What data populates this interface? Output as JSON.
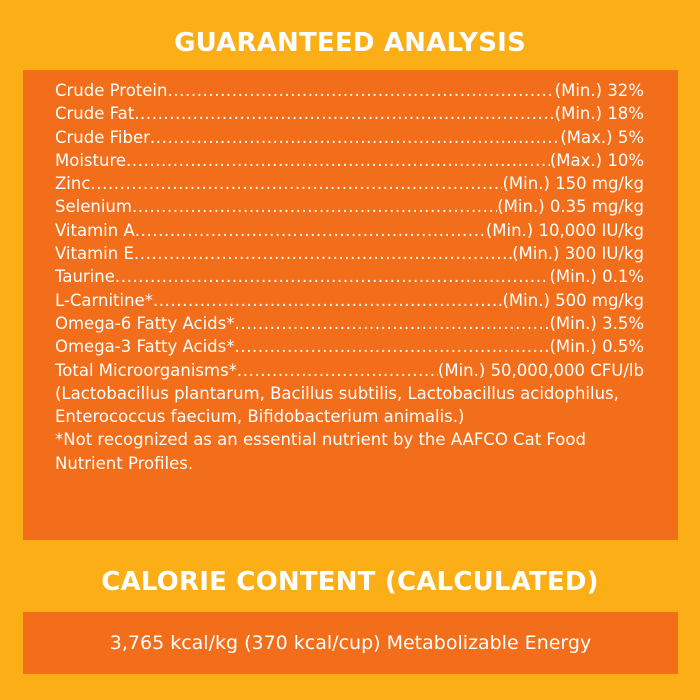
{
  "guaranteed_analysis": {
    "title": "GUARANTEED ANALYSIS",
    "rows": [
      {
        "name": "Crude Protein",
        "value": "(Min.) 32%"
      },
      {
        "name": "Crude Fat",
        "value": "(Min.) 18%"
      },
      {
        "name": "Crude Fiber",
        "value": "(Max.) 5%"
      },
      {
        "name": "Moisture",
        "value": "(Max.) 10%"
      },
      {
        "name": "Zinc",
        "value": "(Min.) 150 mg/kg"
      },
      {
        "name": "Selenium",
        "value": "(Min.) 0.35 mg/kg"
      },
      {
        "name": "Vitamin A",
        "value": "(Min.) 10,000 IU/kg"
      },
      {
        "name": "Vitamin E",
        "value": "(Min.) 300 IU/kg"
      },
      {
        "name": "Taurine",
        "value": "(Min.) 0.1%"
      },
      {
        "name": "L-Carnitine*",
        "value": "(Min.) 500 mg/kg"
      },
      {
        "name": "Omega-6 Fatty Acids*",
        "value": "(Min.)  3.5%"
      },
      {
        "name": "Omega-3 Fatty Acids*",
        "value": "(Min.) 0.5%"
      },
      {
        "name": "Total Microorganisms*",
        "value": "(Min.) 50,000,000 CFU/lb"
      }
    ],
    "microorganisms_note": "(Lactobacillus plantarum, Bacillus subtilis, Lactobacillus acidophilus, Enterococcus faecium, Bifidobacterium animalis.)",
    "aafco_note": "*Not recognized as an essential nutrient by the AAFCO Cat Food Nutrient Profiles."
  },
  "calorie_content": {
    "title": "CALORIE CONTENT (CALCULATED)",
    "text": "3,765 kcal/kg (370 kcal/cup) Metabolizable Energy"
  },
  "colors": {
    "background": "#fbae16",
    "panel": "#f26e1b",
    "text": "#ffffff"
  }
}
